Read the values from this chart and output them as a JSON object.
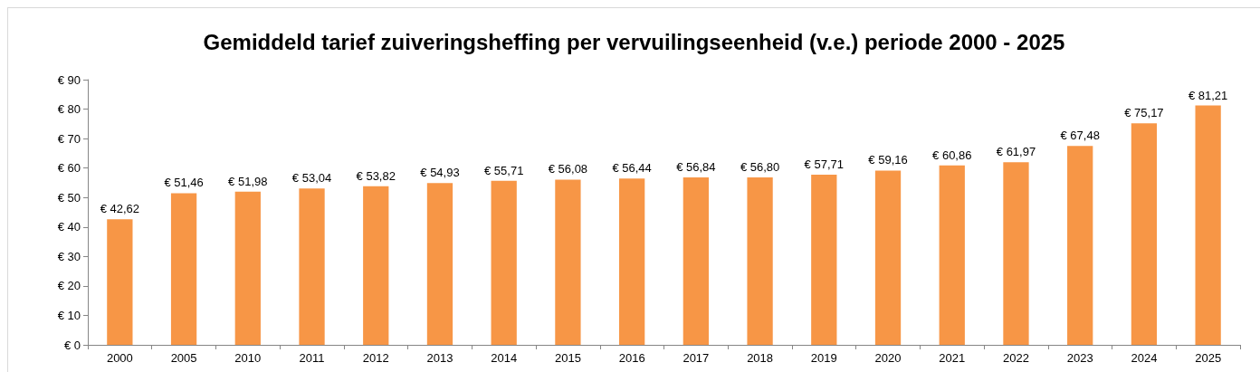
{
  "chart_data": {
    "type": "bar",
    "title": "Gemiddeld tarief zuiveringsheffing per vervuilingseenheid (v.e.) periode 2000 - 2025",
    "categories": [
      "2000",
      "2005",
      "2010",
      "2011",
      "2012",
      "2013",
      "2014",
      "2015",
      "2016",
      "2017",
      "2018",
      "2019",
      "2020",
      "2021",
      "2022",
      "2023",
      "2024",
      "2025"
    ],
    "values": [
      42.62,
      51.46,
      51.98,
      53.04,
      53.82,
      54.93,
      55.71,
      56.08,
      56.44,
      56.84,
      56.8,
      57.71,
      59.16,
      60.86,
      61.97,
      67.48,
      75.17,
      81.21
    ],
    "value_labels": [
      "€ 42,62",
      "€ 51,46",
      "€ 51,98",
      "€ 53,04",
      "€ 53,82",
      "€ 54,93",
      "€ 55,71",
      "€ 56,08",
      "€ 56,44",
      "€ 56,84",
      "€ 56,80",
      "€ 57,71",
      "€ 59,16",
      "€ 60,86",
      "€ 61,97",
      "€ 67,48",
      "€ 75,17",
      "€ 81,21"
    ],
    "color": "#f79646",
    "ylim": [
      0,
      90
    ],
    "yticks": [
      {
        "value": 0,
        "label": "€ 0"
      },
      {
        "value": 10,
        "label": "€ 10"
      },
      {
        "value": 20,
        "label": "€ 20"
      },
      {
        "value": 30,
        "label": "€ 30"
      },
      {
        "value": 40,
        "label": "€ 40"
      },
      {
        "value": 50,
        "label": "€ 50"
      },
      {
        "value": 60,
        "label": "€ 60"
      },
      {
        "value": 70,
        "label": "€ 70"
      },
      {
        "value": 80,
        "label": "€ 80"
      },
      {
        "value": 90,
        "label": "€ 90"
      }
    ],
    "grid": false
  }
}
